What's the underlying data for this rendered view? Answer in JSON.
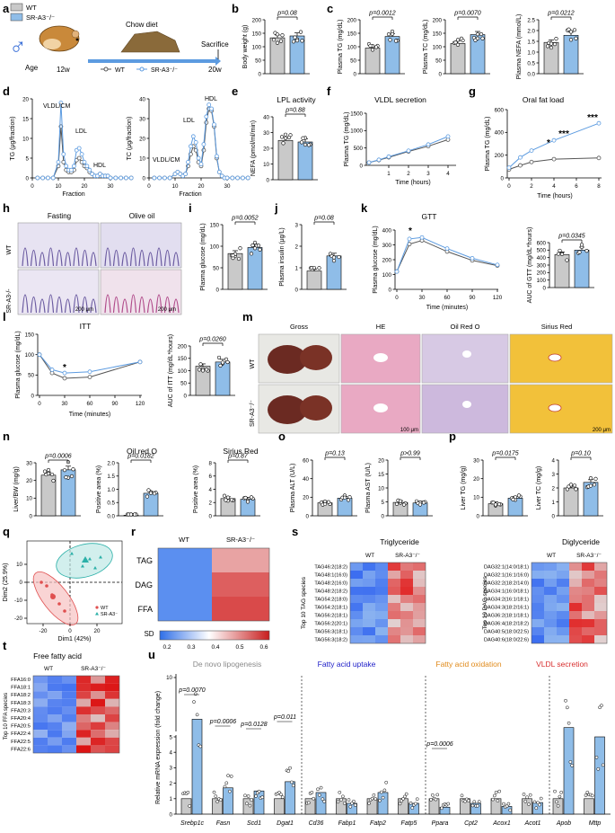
{
  "panels": {
    "a": {
      "letter": "a",
      "legend_wt": "WT",
      "legend_ko": "SR-A3⁻/⁻",
      "chow": "Chow diet",
      "age": "Age",
      "w12": "12w",
      "w20": "20w",
      "sacrifice": "Sacrifice",
      "line_wt": "WT",
      "line_ko": "SR-A3⁻/⁻"
    },
    "b": {
      "letter": "b",
      "ylabel": "Body weight (g)",
      "p": "p=0.08",
      "ticks": [
        "0",
        "50",
        "100",
        "150",
        "200"
      ]
    },
    "c": {
      "letter": "c",
      "p1": "p=0.0012",
      "p2": "p=0.0070",
      "p3": "p=0.0212",
      "y1": "Plasma TG (mg/dL)",
      "y2": "Plasma TC (mg/dL)",
      "y3": "Plasma NEFA (mmol/L)",
      "t1": [
        "0",
        "50",
        "100",
        "150",
        "200"
      ],
      "t2": [
        "0",
        "50",
        "100",
        "150",
        "200"
      ],
      "t3": [
        "0.0",
        "0.5",
        "1.0",
        "1.5",
        "2.0",
        "2.5"
      ]
    },
    "d": {
      "letter": "d",
      "y1": "TG (μg/fraction)",
      "y2": "TC (μg/fraction)",
      "xlabel": "Fraction",
      "l_vldl": "VLDL/CM",
      "l_ldl": "LDL",
      "l_hdl": "HDL",
      "t1": [
        "0",
        "5",
        "10",
        "15",
        "20"
      ],
      "t2": [
        "0",
        "10",
        "20",
        "30",
        "40"
      ],
      "xt": [
        "0",
        "10",
        "20",
        "30"
      ]
    },
    "e": {
      "letter": "e",
      "title": "LPL activity",
      "p": "p=0.88",
      "ylabel": "NEFA (pmol/ml/min)",
      "ticks": [
        "0",
        "10",
        "20",
        "30",
        "40"
      ]
    },
    "f": {
      "letter": "f",
      "title": "VLDL secretion",
      "ylabel": "Plasma TG (mg/dL)",
      "xlabel": "Time (hours)",
      "ticks": [
        "0",
        "500",
        "1000",
        "1500"
      ],
      "xt": [
        "1",
        "2",
        "3",
        "4"
      ]
    },
    "g": {
      "letter": "g",
      "title": "Oral fat load",
      "ylabel": "Plasma TG (mg/dL)",
      "xlabel": "Time (hours)",
      "ticks": [
        "0",
        "200",
        "400",
        "600"
      ],
      "xt": [
        "0",
        "2",
        "4",
        "6",
        "8"
      ],
      "s1": "*",
      "s2": "***",
      "s3": "***"
    },
    "h": {
      "letter": "h",
      "fasting": "Fasting",
      "olive": "Olive oil",
      "wt": "WT",
      "ko": "SR-A3-/-",
      "scale1": "200 μm",
      "scale2": "200 μm"
    },
    "i": {
      "letter": "i",
      "p": "p=0.0052",
      "ylabel": "Plasma glucose (mg/dL)",
      "ticks": [
        "0",
        "50",
        "100",
        "150"
      ]
    },
    "j": {
      "letter": "j",
      "p": "p=0.08",
      "ylabel": "Plasma insulin (μg/L)",
      "ticks": [
        "0",
        "1",
        "2",
        "3"
      ]
    },
    "k": {
      "letter": "k",
      "title": "GTT",
      "ylabel": "Plasma glucose (mg/dL)",
      "xlabel": "Time (minutes)",
      "ticks": [
        "0",
        "100",
        "200",
        "300",
        "400"
      ],
      "xt": [
        "0",
        "30",
        "60",
        "90",
        "120"
      ],
      "star": "*",
      "p": "p=0.0345",
      "auc": "AUC of GTT (mg/dL*hours)",
      "auct": [
        "0",
        "100",
        "200",
        "300",
        "400",
        "500",
        "600"
      ]
    },
    "l": {
      "letter": "l",
      "title": "ITT",
      "ylabel": "Plasma glucose (mg/dL)",
      "xlabel": "Time (minutes)",
      "ticks": [
        "0",
        "50",
        "100",
        "150"
      ],
      "xt": [
        "0",
        "30",
        "60",
        "90",
        "120"
      ],
      "star": "*",
      "p": "p=0.0260",
      "auc": "AUC of ITT (mg/dL*hours)",
      "auct": [
        "0",
        "50",
        "100",
        "150",
        "200"
      ]
    },
    "m": {
      "letter": "m",
      "c1": "Gross",
      "c2": "HE",
      "c3": "Oil Red O",
      "c4": "Sirius Red",
      "wt": "WT",
      "ko": "SR-A3⁻/⁻",
      "scale1": "100 μm",
      "scale2": "200 μm"
    },
    "n": {
      "letter": "n",
      "p1": "p=0.0006",
      "p2": "p=0.0182",
      "p3": "p=0.87",
      "t2": "Oil red O",
      "t3": "Sirius Red",
      "y1": "Liver/BW (mg/g)",
      "y2": "Positive area (%)",
      "y3": "Positive area (%)",
      "ticks1": [
        "0",
        "10",
        "20",
        "30"
      ],
      "ticks2": [
        "0.0",
        "0.5",
        "1.0",
        "1.5",
        "2.0"
      ],
      "ticks3": [
        "0",
        "2",
        "4",
        "6",
        "8"
      ]
    },
    "o": {
      "letter": "o",
      "p1": "p=0.13",
      "p2": "p>0.99",
      "y1": "Plasma ALT (U/L)",
      "y2": "Plasma AST (U/L)",
      "t1": [
        "0",
        "20",
        "40",
        "60"
      ],
      "t2": [
        "0",
        "5",
        "10",
        "15",
        "20"
      ]
    },
    "p": {
      "letter": "p",
      "p1": "p=0.0175",
      "p2": "p=0.10",
      "y1": "Liver TG (mg/g)",
      "y2": "Liver TC (mg/g)",
      "t1": [
        "0",
        "10",
        "20",
        "30"
      ],
      "t2": [
        "0",
        "1",
        "2",
        "3",
        "4"
      ]
    },
    "q": {
      "letter": "q",
      "xlabel": "Dim1 (42%)",
      "ylabel": "Dim2 (25.9%)",
      "wt": "WT",
      "ko": "SR-A3⁻",
      "xt": [
        "-20",
        "0",
        "20"
      ],
      "yt": [
        "10",
        "0",
        "-10",
        "-20"
      ]
    },
    "r": {
      "letter": "r",
      "wt": "WT",
      "ko": "SR-A3⁻/⁻",
      "rows": [
        "TAG",
        "DAG",
        "FFA"
      ],
      "sd": "SD",
      "sdt": [
        "0.2",
        "0.3",
        "0.4",
        "0.5",
        "0.6"
      ]
    },
    "s": {
      "letter": "s",
      "t1": "Triglyceride",
      "t2": "Diglyceride",
      "wt": "WT",
      "ko": "SR-A3⁻/⁻",
      "y1": "Top 10 TAG species",
      "y2": "Top 10 DAG species",
      "tag": [
        "TAG46:2(18:2)",
        "TAG48:1(16:0)",
        "TAG48:2(16:0)",
        "TAG48:2(18:2)",
        "TAG54:2(18:0)",
        "TAG54:2(18:1)",
        "TAG56:2(18:1)",
        "TAG56:2(20:1)",
        "TAG56:3(18:1)",
        "TAG56:3(18:2)"
      ],
      "dag": [
        "DAG32:1(14:0/18:1)",
        "DAG32:1(16:1/16:0)",
        "DAG32:2(18:2/14:0)",
        "DAG34:1(16:0/18:1)",
        "DAG34:2(16:1/18:1)",
        "DAG34:3(18:2/16:1)",
        "DAG36:2(18:1/18:1)",
        "DAG36:4(18:2/18:2)",
        "DAG40:5(18:0/22:5)",
        "DAG40:6(18:0/22:6)"
      ]
    },
    "t": {
      "letter": "t",
      "title": "Free fatty acid",
      "wt": "WT",
      "ko": "SR-A3⁻/⁻",
      "ylabel": "Top 10 FFA species",
      "ffa": [
        "FFA16:0",
        "FFA18:1",
        "FFA18:2",
        "FFA18:3",
        "FFA20:3",
        "FFA20:4",
        "FFA20:5",
        "FFA22:4",
        "FFA22:5",
        "FFA22:6"
      ]
    },
    "u": {
      "letter": "u",
      "ylabel": "Relative mRNA expression (fold change)",
      "g1": "De novo lipogenesis",
      "g2": "Fatty acid uptake",
      "g3": "Fatty acid oxidation",
      "g4": "VLDL secretion",
      "genes": [
        "Srebp1c",
        "Fasn",
        "Scd1",
        "Dgat1",
        "Cd36",
        "Fabp1",
        "Fatp2",
        "Fatp5",
        "Ppara",
        "Cpt2",
        "Acox1",
        "Acot1",
        "Apob",
        "Mttp"
      ],
      "pvals": [
        "p=0.0070",
        "p=0.0006",
        "p=0.0128",
        "p=0.011",
        "p=0.0006"
      ],
      "ticks": [
        "0",
        "1",
        "2",
        "3",
        "4",
        "5",
        "10"
      ]
    }
  },
  "chart_data": [
    {
      "panel": "b",
      "type": "bar",
      "categories": [
        "WT",
        "SR-A3-/-"
      ],
      "values": [
        133,
        140
      ],
      "ylabel": "Body weight (g)",
      "ylim": [
        0,
        200
      ]
    },
    {
      "panel": "c1",
      "type": "bar",
      "categories": [
        "WT",
        "SR-A3-/-"
      ],
      "values": [
        95,
        138
      ],
      "ylabel": "Plasma TG (mg/dL)",
      "ylim": [
        0,
        200
      ]
    },
    {
      "panel": "c2",
      "type": "bar",
      "categories": [
        "WT",
        "SR-A3-/-"
      ],
      "values": [
        112,
        145
      ],
      "ylabel": "Plasma TC (mg/dL)",
      "ylim": [
        0,
        200
      ]
    },
    {
      "panel": "c3",
      "type": "bar",
      "categories": [
        "WT",
        "SR-A3-/-"
      ],
      "values": [
        1.45,
        1.78
      ],
      "ylabel": "Plasma NEFA (mmol/L)",
      "ylim": [
        0,
        2.5
      ]
    },
    {
      "panel": "d1",
      "type": "line",
      "x": [
        2,
        4,
        6,
        8,
        10,
        11,
        12,
        13,
        14,
        15,
        16,
        17,
        18,
        19,
        20,
        21,
        22,
        23,
        24,
        25,
        26,
        27,
        28,
        29,
        30,
        32,
        34,
        36,
        38
      ],
      "series": [
        {
          "name": "WT",
          "values": [
            0,
            0,
            0,
            0,
            3,
            13,
            4,
            2,
            1.5,
            1.5,
            2,
            4.5,
            5,
            4,
            3,
            2.5,
            1.5,
            1,
            0.5,
            0.5,
            1,
            0.5,
            0.5,
            0.5,
            0,
            0,
            0,
            0,
            0
          ]
        },
        {
          "name": "SR-A3-/-",
          "values": [
            0,
            0,
            0,
            0,
            4,
            19,
            6,
            3,
            2,
            2,
            3,
            7,
            7.5,
            6,
            4,
            3,
            2,
            1,
            0.5,
            0.5,
            1,
            0.5,
            0.5,
            0.5,
            0,
            0,
            0,
            0,
            0
          ]
        }
      ],
      "ylim": [
        0,
        20
      ]
    },
    {
      "panel": "d2",
      "type": "line",
      "x": [
        2,
        4,
        6,
        8,
        10,
        11,
        12,
        13,
        14,
        15,
        16,
        17,
        18,
        19,
        20,
        21,
        22,
        23,
        24,
        25,
        26,
        27,
        28,
        29,
        30,
        32,
        34,
        36,
        38
      ],
      "series": [
        {
          "name": "WT",
          "values": [
            0,
            0,
            0,
            0,
            2,
            3,
            2,
            1,
            2,
            6,
            12,
            16,
            14,
            8,
            6,
            14,
            28,
            35,
            34,
            26,
            10,
            3,
            1,
            0,
            0,
            0,
            0,
            0,
            0
          ]
        },
        {
          "name": "SR-A3-/-",
          "values": [
            0,
            0,
            0,
            0,
            2,
            3,
            2,
            1,
            2,
            8,
            16,
            21,
            18,
            10,
            7,
            17,
            31,
            37,
            35,
            27,
            11,
            3,
            1,
            0,
            0,
            0,
            0,
            0,
            0
          ]
        }
      ],
      "ylim": [
        0,
        40
      ]
    },
    {
      "panel": "e",
      "type": "bar",
      "categories": [
        "WT",
        "SR-A3-/-"
      ],
      "values": [
        25,
        24
      ],
      "ylabel": "NEFA (pmol/ml/min)",
      "ylim": [
        0,
        40
      ]
    },
    {
      "panel": "f",
      "type": "line",
      "x": [
        0,
        0.5,
        1,
        2,
        3,
        4
      ],
      "series": [
        {
          "name": "WT",
          "values": [
            80,
            150,
            230,
            400,
            550,
            740
          ]
        },
        {
          "name": "SR-A3-/-",
          "values": [
            80,
            160,
            250,
            420,
            600,
            830
          ]
        }
      ],
      "ylim": [
        0,
        1500
      ]
    },
    {
      "panel": "g",
      "type": "line",
      "x": [
        0,
        1,
        2,
        4,
        8
      ],
      "series": [
        {
          "name": "WT",
          "values": [
            75,
            110,
            140,
            165,
            175
          ]
        },
        {
          "name": "SR-A3-/-",
          "values": [
            90,
            180,
            240,
            330,
            480
          ]
        }
      ],
      "ylim": [
        0,
        600
      ]
    },
    {
      "panel": "i",
      "type": "bar",
      "categories": [
        "WT",
        "SR-A3-/-"
      ],
      "values": [
        83,
        97
      ],
      "ylabel": "Plasma glucose (mg/dL)",
      "ylim": [
        0,
        150
      ]
    },
    {
      "panel": "j",
      "type": "bar",
      "categories": [
        "WT",
        "SR-A3-/-"
      ],
      "values": [
        0.85,
        1.55
      ],
      "ylabel": "Plasma insulin (μg/L)",
      "ylim": [
        0,
        3
      ]
    },
    {
      "panel": "k",
      "type": "line",
      "x": [
        0,
        15,
        30,
        60,
        90,
        120
      ],
      "series": [
        {
          "name": "WT",
          "values": [
            120,
            305,
            330,
            255,
            195,
            160
          ]
        },
        {
          "name": "SR-A3-/-",
          "values": [
            120,
            340,
            350,
            275,
            210,
            165
          ]
        }
      ],
      "ylim": [
        0,
        400
      ]
    },
    {
      "panel": "k-auc",
      "type": "bar",
      "categories": [
        "WT",
        "SR-A3-/-"
      ],
      "values": [
        440,
        500
      ],
      "ylabel": "AUC of GTT",
      "ylim": [
        0,
        600
      ]
    },
    {
      "panel": "l",
      "type": "line",
      "x": [
        0,
        15,
        30,
        60,
        120
      ],
      "series": [
        {
          "name": "WT",
          "values": [
            100,
            55,
            42,
            45,
            82
          ]
        },
        {
          "name": "SR-A3-/-",
          "values": [
            100,
            63,
            55,
            58,
            82
          ]
        }
      ],
      "ylim": [
        0,
        150
      ]
    },
    {
      "panel": "l-auc",
      "type": "bar",
      "categories": [
        "WT",
        "SR-A3-/-"
      ],
      "values": [
        118,
        135
      ],
      "ylabel": "AUC of ITT",
      "ylim": [
        0,
        200
      ]
    },
    {
      "panel": "n1",
      "type": "bar",
      "categories": [
        "WT",
        "SR-A3-/-"
      ],
      "values": [
        23,
        26
      ],
      "ylabel": "Liver/BW (mg/g)",
      "ylim": [
        0,
        30
      ]
    },
    {
      "panel": "n2",
      "type": "bar",
      "categories": [
        "WT",
        "SR-A3-/-"
      ],
      "values": [
        0.02,
        0.85
      ],
      "ylabel": "Positive area (%)",
      "ylim": [
        0,
        2
      ]
    },
    {
      "panel": "n3",
      "type": "bar",
      "categories": [
        "WT",
        "SR-A3-/-"
      ],
      "values": [
        2.6,
        2.5
      ],
      "ylabel": "Positive area (%)",
      "ylim": [
        0,
        8
      ]
    },
    {
      "panel": "o1",
      "type": "bar",
      "categories": [
        "WT",
        "SR-A3-/-"
      ],
      "values": [
        14,
        19
      ],
      "ylabel": "Plasma ALT (U/L)",
      "ylim": [
        0,
        60
      ]
    },
    {
      "panel": "o2",
      "type": "bar",
      "categories": [
        "WT",
        "SR-A3-/-"
      ],
      "values": [
        4.8,
        4.6
      ],
      "ylabel": "Plasma AST (U/L)",
      "ylim": [
        0,
        20
      ]
    },
    {
      "panel": "p1",
      "type": "bar",
      "categories": [
        "WT",
        "SR-A3-/-"
      ],
      "values": [
        6.5,
        9.5
      ],
      "ylabel": "Liver TG (mg/g)",
      "ylim": [
        0,
        30
      ]
    },
    {
      "panel": "p2",
      "type": "bar",
      "categories": [
        "WT",
        "SR-A3-/-"
      ],
      "values": [
        2.0,
        2.4
      ],
      "ylabel": "Liver TC (mg/g)",
      "ylim": [
        0,
        4
      ]
    },
    {
      "panel": "u",
      "type": "bar",
      "categories": [
        "Srebp1c",
        "Fasn",
        "Scd1",
        "Dgat1",
        "Cd36",
        "Fabp1",
        "Fatp2",
        "Fatp5",
        "Ppara",
        "Cpt2",
        "Acox1",
        "Acot1",
        "Apob",
        "Mttp"
      ],
      "series": [
        {
          "name": "WT",
          "values": [
            1,
            1,
            1,
            1,
            1,
            1,
            1,
            1,
            1,
            1,
            1,
            1,
            1,
            1
          ]
        },
        {
          "name": "SR-A3-/-",
          "values": [
            6,
            1.7,
            1.5,
            2.1,
            1.4,
            0.7,
            1.4,
            0.7,
            0.45,
            0.7,
            0.5,
            0.75,
            5.2,
            5
          ]
        }
      ]
    }
  ]
}
